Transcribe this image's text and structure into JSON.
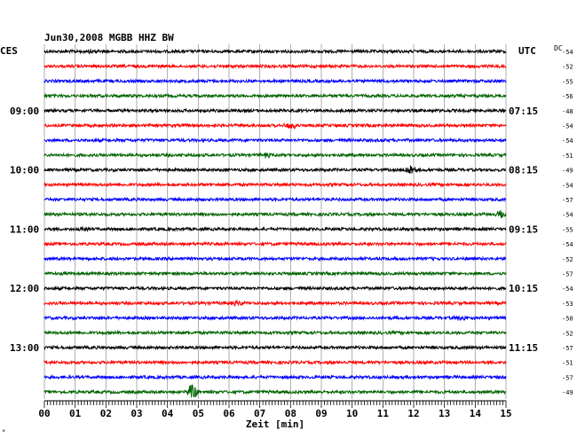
{
  "chart_data": {
    "type": "line",
    "title": "Jun30,2008   MGBB HHZ BW",
    "left_timezone": "CES",
    "right_timezone": "UTC",
    "dc_label": "DC",
    "xlabel": "Zeit [min]",
    "x_range": [
      0,
      15
    ],
    "x_ticks": [
      "00",
      "01",
      "02",
      "03",
      "04",
      "05",
      "06",
      "07",
      "08",
      "09",
      "10",
      "11",
      "12",
      "13",
      "14",
      "15"
    ],
    "grid": "vertical lines every minute",
    "trace_colors": [
      "#000000",
      "#ff0000",
      "#0000ff",
      "#006400"
    ],
    "left_time_labels": [
      {
        "row": 4,
        "text": "09:00"
      },
      {
        "row": 8,
        "text": "10:00"
      },
      {
        "row": 12,
        "text": "11:00"
      },
      {
        "row": 16,
        "text": "12:00"
      },
      {
        "row": 20,
        "text": "13:00"
      }
    ],
    "right_time_labels": [
      {
        "row": 4,
        "text": "07:15"
      },
      {
        "row": 8,
        "text": "08:15"
      },
      {
        "row": 12,
        "text": "09:15"
      },
      {
        "row": 16,
        "text": "10:15"
      },
      {
        "row": 20,
        "text": "11:15"
      }
    ],
    "dc_values": [
      -54,
      -52,
      -55,
      -56,
      -48,
      -54,
      -54,
      -51,
      -49,
      -54,
      -57,
      -54,
      -55,
      -54,
      -52,
      -57,
      -54,
      -53,
      -50,
      -52,
      -57,
      -51,
      -57,
      -49
    ],
    "events": [
      {
        "row": 0,
        "minute": 1.5,
        "amp": 2.5
      },
      {
        "row": 5,
        "minute": 8.0,
        "amp": 4
      },
      {
        "row": 7,
        "minute": 7.2,
        "amp": 2.5
      },
      {
        "row": 8,
        "minute": 11.9,
        "amp": 6
      },
      {
        "row": 11,
        "minute": 14.9,
        "amp": 5
      },
      {
        "row": 12,
        "minute": 1.2,
        "amp": 2.5
      },
      {
        "row": 17,
        "minute": 6.3,
        "amp": 3
      },
      {
        "row": 18,
        "minute": 13.5,
        "amp": 2.5
      },
      {
        "row": 23,
        "minute": 4.8,
        "amp": 9
      }
    ],
    "marker": "*"
  }
}
